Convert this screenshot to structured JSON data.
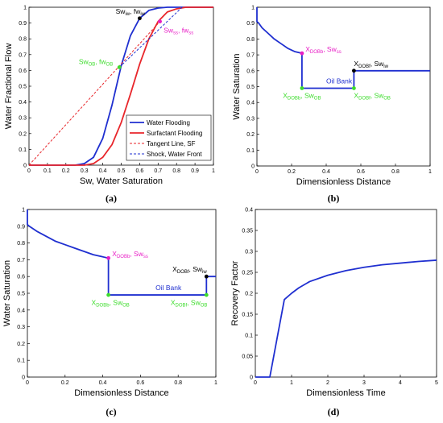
{
  "chart_data": [
    {
      "id": "a",
      "type": "line",
      "caption": "(a)",
      "xlabel": "Sw, Water Saturation",
      "ylabel": "Water Fractional Flow",
      "xlim": [
        0,
        1
      ],
      "ylim": [
        0,
        1
      ],
      "xticks": [
        "0",
        "0.1",
        "0.2",
        "0.3",
        "0.4",
        "0.5",
        "0.6",
        "0.7",
        "0.8",
        "0.9",
        "1"
      ],
      "yticks": [
        "0",
        "0.1",
        "0.2",
        "0.3",
        "0.4",
        "0.5",
        "0.6",
        "0.7",
        "0.8",
        "0.9",
        "1"
      ],
      "series": [
        {
          "name": "Water Flooding",
          "color": "#1f2fd0",
          "style": "solid",
          "x": [
            0,
            0.25,
            0.3,
            0.35,
            0.4,
            0.45,
            0.5,
            0.55,
            0.6,
            0.65,
            0.7,
            0.75,
            0.8,
            0.85,
            1
          ],
          "y": [
            0,
            0,
            0.01,
            0.05,
            0.17,
            0.38,
            0.63,
            0.82,
            0.93,
            0.98,
            0.995,
            1,
            1,
            1,
            1
          ]
        },
        {
          "name": "Surfactant Flooding",
          "color": "#e8262b",
          "style": "solid",
          "x": [
            0,
            0.3,
            0.35,
            0.4,
            0.45,
            0.5,
            0.55,
            0.6,
            0.65,
            0.7,
            0.75,
            0.8,
            0.85,
            0.9,
            1
          ],
          "y": [
            0,
            0,
            0.01,
            0.05,
            0.13,
            0.27,
            0.45,
            0.64,
            0.8,
            0.91,
            0.97,
            0.99,
            1,
            1,
            1
          ]
        },
        {
          "name": "Tangent Line, SF",
          "color": "#e8262b",
          "style": "dashed",
          "x": [
            0,
            0.71
          ],
          "y": [
            0,
            0.91
          ]
        },
        {
          "name": "Shock, Water Front",
          "color": "#1f2fd0",
          "style": "dashed",
          "x": [
            0.49,
            0.83
          ],
          "y": [
            0.62,
            1.0
          ]
        }
      ],
      "points": [
        {
          "x": 0.6,
          "y": 0.93,
          "color": "#000000",
          "label": "Sw",
          "sub": "iw",
          "label2": ", fw",
          "sub2": "iw",
          "lx": 0.47,
          "ly": 0.96
        },
        {
          "x": 0.71,
          "y": 0.91,
          "color": "#e81fc6",
          "label": "Sw",
          "sub": "ss",
          "label2": ", fw",
          "sub2": "ss",
          "lx": 0.73,
          "ly": 0.84
        },
        {
          "x": 0.49,
          "y": 0.62,
          "color": "#3ddc2c",
          "label": "Sw",
          "sub": "OB",
          "label2": ", fw",
          "sub2": "OB",
          "lx": 0.27,
          "ly": 0.64
        }
      ],
      "legend_position": "bottom-right"
    },
    {
      "id": "b",
      "type": "line",
      "caption": "(b)",
      "xlabel": "Dimensionless Distance",
      "ylabel": "Water Saturation",
      "xlim": [
        0,
        1
      ],
      "ylim": [
        0,
        1
      ],
      "xticks": [
        "0",
        "0.2",
        "0.4",
        "0.6",
        "0.8",
        "1"
      ],
      "yticks": [
        "0",
        "0.1",
        "0.2",
        "0.3",
        "0.4",
        "0.5",
        "0.6",
        "0.7",
        "0.8",
        "0.9",
        "1"
      ],
      "series": [
        {
          "color": "#1f2fd0",
          "style": "solid",
          "x": [
            0,
            0,
            0.01,
            0.03,
            0.06,
            0.1,
            0.14,
            0.18,
            0.22,
            0.26,
            0.26,
            0.56,
            0.56,
            1
          ],
          "y": [
            1,
            0.91,
            0.9,
            0.87,
            0.84,
            0.8,
            0.77,
            0.74,
            0.72,
            0.71,
            0.49,
            0.49,
            0.6,
            0.6
          ]
        }
      ],
      "points": [
        {
          "x": 0.26,
          "y": 0.71,
          "color": "#e81fc6",
          "label": "X",
          "sub": "DOBb",
          "label2": ", Sw",
          "sub2": "ss",
          "lx": 0.28,
          "ly": 0.72
        },
        {
          "x": 0.56,
          "y": 0.6,
          "color": "#000000",
          "label": "X",
          "sub": "DOBf",
          "label2": ", Sw",
          "sub2": "iw",
          "lx": 0.56,
          "ly": 0.63
        },
        {
          "x": 0.26,
          "y": 0.49,
          "color": "#3ddc2c",
          "label": "X",
          "sub": "DOBb",
          "label2": ", Sw",
          "sub2": "OB",
          "lx": 0.15,
          "ly": 0.43
        },
        {
          "x": 0.56,
          "y": 0.49,
          "color": "#3ddc2c",
          "label": "X",
          "sub": "DOBf",
          "label2": ", Sw",
          "sub2": "OB",
          "lx": 0.56,
          "ly": 0.43
        }
      ],
      "annotation": {
        "text": "Oil Bank",
        "x": 0.4,
        "y": 0.52,
        "color": "#1f2fd0"
      }
    },
    {
      "id": "c",
      "type": "line",
      "caption": "(c)",
      "xlabel": "Dimensionless Distance",
      "ylabel": "Water Saturation",
      "xlim": [
        0,
        1
      ],
      "ylim": [
        0,
        1
      ],
      "xticks": [
        "0",
        "0.2",
        "0.4",
        "0.6",
        "0.8",
        "1"
      ],
      "yticks": [
        "0",
        "0.1",
        "0.2",
        "0.3",
        "0.4",
        "0.5",
        "0.6",
        "0.7",
        "0.8",
        "0.9",
        "1"
      ],
      "series": [
        {
          "color": "#1f2fd0",
          "style": "solid",
          "x": [
            0,
            0,
            0.01,
            0.05,
            0.1,
            0.15,
            0.2,
            0.25,
            0.3,
            0.35,
            0.43,
            0.43,
            0.95,
            0.95,
            1
          ],
          "y": [
            1,
            0.91,
            0.9,
            0.87,
            0.84,
            0.81,
            0.79,
            0.77,
            0.75,
            0.73,
            0.71,
            0.49,
            0.49,
            0.6,
            0.6
          ]
        }
      ],
      "points": [
        {
          "x": 0.43,
          "y": 0.71,
          "color": "#e81fc6",
          "label": "X",
          "sub": "DOBb",
          "label2": ", Sw",
          "sub2": "ss",
          "lx": 0.45,
          "ly": 0.72
        },
        {
          "x": 0.95,
          "y": 0.6,
          "color": "#000000",
          "label": "X",
          "sub": "DOBf",
          "label2": ", Sw",
          "sub2": "iw",
          "lx": 0.77,
          "ly": 0.63
        },
        {
          "x": 0.43,
          "y": 0.49,
          "color": "#3ddc2c",
          "label": "X",
          "sub": "DOBb",
          "label2": ", Sw",
          "sub2": "OB",
          "lx": 0.34,
          "ly": 0.43
        },
        {
          "x": 0.95,
          "y": 0.49,
          "color": "#3ddc2c",
          "label": "X",
          "sub": "DOBf",
          "label2": ", Sw",
          "sub2": "OB",
          "lx": 0.76,
          "ly": 0.43
        }
      ],
      "annotation": {
        "text": "Oil Bank",
        "x": 0.68,
        "y": 0.52,
        "color": "#1f2fd0"
      }
    },
    {
      "id": "d",
      "type": "line",
      "caption": "(d)",
      "xlabel": "Dimensionless Time",
      "ylabel": "Recovery Factor",
      "xlim": [
        0,
        5
      ],
      "ylim": [
        0,
        0.4
      ],
      "xticks": [
        "0",
        "1",
        "2",
        "3",
        "4",
        "5"
      ],
      "yticks": [
        "0",
        "0.05",
        "0.1",
        "0.15",
        "0.2",
        "0.25",
        "0.3",
        "0.35",
        "0.4"
      ],
      "series": [
        {
          "color": "#1f2fd0",
          "style": "solid",
          "x": [
            0,
            0.4,
            0.8,
            1.0,
            1.2,
            1.5,
            2.0,
            2.5,
            3.0,
            3.5,
            4.0,
            4.5,
            5.0
          ],
          "y": [
            0,
            0,
            0.185,
            0.2,
            0.213,
            0.228,
            0.243,
            0.254,
            0.262,
            0.268,
            0.272,
            0.276,
            0.279
          ]
        }
      ]
    }
  ]
}
